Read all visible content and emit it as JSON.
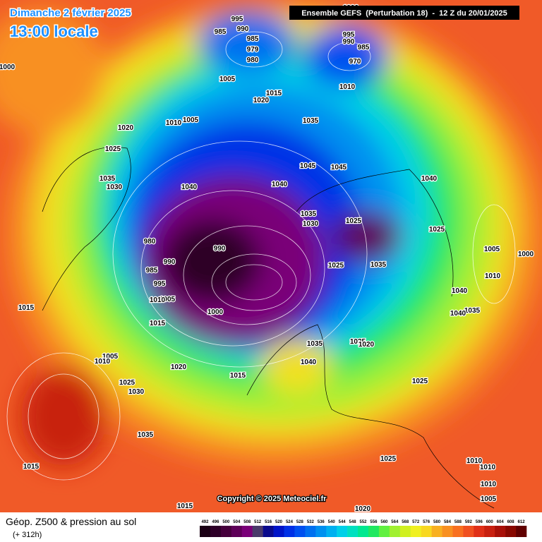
{
  "header": {
    "date": "Dimanche 2 février 2025",
    "time": "13:00 locale",
    "run": "Ensemble GEFS  (Perturbation 18)  -  12 Z du 20/01/2025"
  },
  "footer": {
    "title": "Géop. Z500 & pression au sol",
    "lead": "(+ 312h)",
    "copyright": "Copyright © 2025 Meteociel.fr"
  },
  "colorbar": {
    "labels": [
      "492",
      "496",
      "500",
      "504",
      "508",
      "512",
      "516",
      "520",
      "524",
      "528",
      "532",
      "536",
      "540",
      "544",
      "548",
      "552",
      "556",
      "560",
      "564",
      "568",
      "572",
      "576",
      "580",
      "584",
      "588",
      "592",
      "596",
      "600",
      "604",
      "608",
      "612"
    ],
    "colors": [
      "#1a0014",
      "#2e0028",
      "#46003c",
      "#5e0058",
      "#7a0078",
      "#4a3a6a",
      "#0a0a8c",
      "#0014c8",
      "#0030e6",
      "#0050f0",
      "#0070f0",
      "#0090f0",
      "#00b0f0",
      "#00d0e8",
      "#00e0c0",
      "#00e890",
      "#20e860",
      "#60f040",
      "#a0f030",
      "#d0f020",
      "#f0f020",
      "#f8d820",
      "#f8b020",
      "#f89020",
      "#f87020",
      "#f05020",
      "#e03018",
      "#c82010",
      "#a81008",
      "#880800",
      "#600000"
    ]
  },
  "isobar_labels": [
    "995",
    "990",
    "985",
    "985",
    "979",
    "980",
    "1005",
    "1000",
    "995",
    "990",
    "985",
    "970",
    "1010",
    "1015",
    "1020",
    "1005",
    "1010",
    "1020",
    "1025",
    "1035",
    "1030",
    "1040",
    "1035",
    "1045",
    "1045",
    "1040",
    "1035",
    "1030",
    "1025",
    "1035",
    "1025",
    "990",
    "980",
    "985",
    "990",
    "995",
    "1005",
    "1000",
    "1010",
    "1015",
    "1020",
    "1015",
    "1015",
    "1035",
    "1040",
    "1025",
    "1020",
    "1040",
    "1035",
    "1005",
    "1000",
    "1010",
    "1040",
    "1040",
    "1025",
    "1025",
    "1005",
    "1010",
    "1025",
    "1030",
    "1035",
    "1015",
    "1020",
    "1025",
    "1010",
    "1010",
    "1005",
    "1015",
    "1000",
    "1010"
  ]
}
